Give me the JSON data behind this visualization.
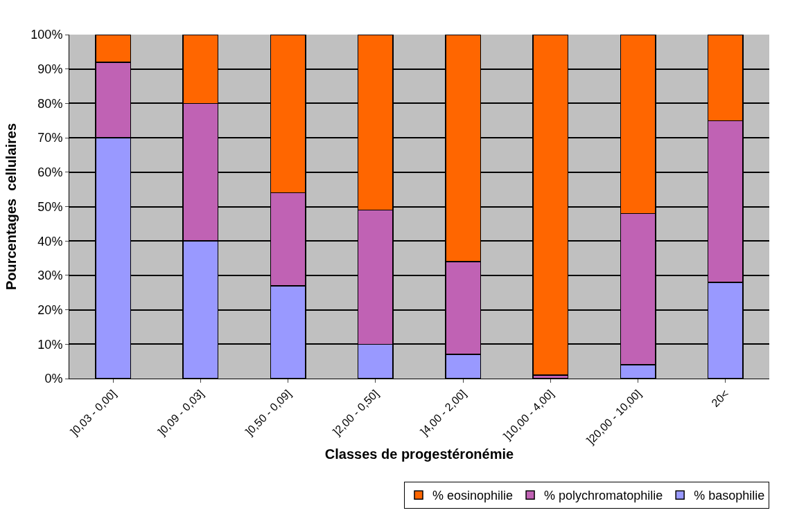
{
  "chart_data": {
    "type": "bar",
    "stacked": true,
    "xlabel": "Classes de progestéronémie",
    "ylabel": "Pourcentages  cellulaires",
    "categories": [
      "]0,03 - 0,00]",
      "]0,09 - 0,03]",
      "]0,50 - 0,09]",
      "]2,00 - 0,50]",
      "]4,00 - 2,00]",
      "]10,00 - 4,00]",
      "]20,00 - 10,00]",
      "20<"
    ],
    "series": [
      {
        "name": "% basophilie",
        "color": "#9999ff",
        "values": [
          70,
          40,
          27,
          10,
          7,
          0,
          4,
          28
        ]
      },
      {
        "name": "% polychromatophilie",
        "color": "#c062b4",
        "values": [
          22,
          40,
          27,
          39,
          27,
          1,
          44,
          47
        ]
      },
      {
        "name": "% eosinophilie",
        "color": "#ff6600",
        "values": [
          8,
          20,
          46,
          51,
          66,
          99,
          52,
          25
        ]
      }
    ],
    "ylim": [
      0,
      100
    ],
    "yticks": [
      {
        "value": 0,
        "label": "0%"
      },
      {
        "value": 10,
        "label": "10%"
      },
      {
        "value": 20,
        "label": "20%"
      },
      {
        "value": 30,
        "label": "30%"
      },
      {
        "value": 40,
        "label": "40%"
      },
      {
        "value": 50,
        "label": "50%"
      },
      {
        "value": 60,
        "label": "60%"
      },
      {
        "value": 70,
        "label": "70%"
      },
      {
        "value": 80,
        "label": "80%"
      },
      {
        "value": 90,
        "label": "90%"
      },
      {
        "value": 100,
        "label": "100%"
      }
    ],
    "grid": "y",
    "legend": "bottom right"
  }
}
